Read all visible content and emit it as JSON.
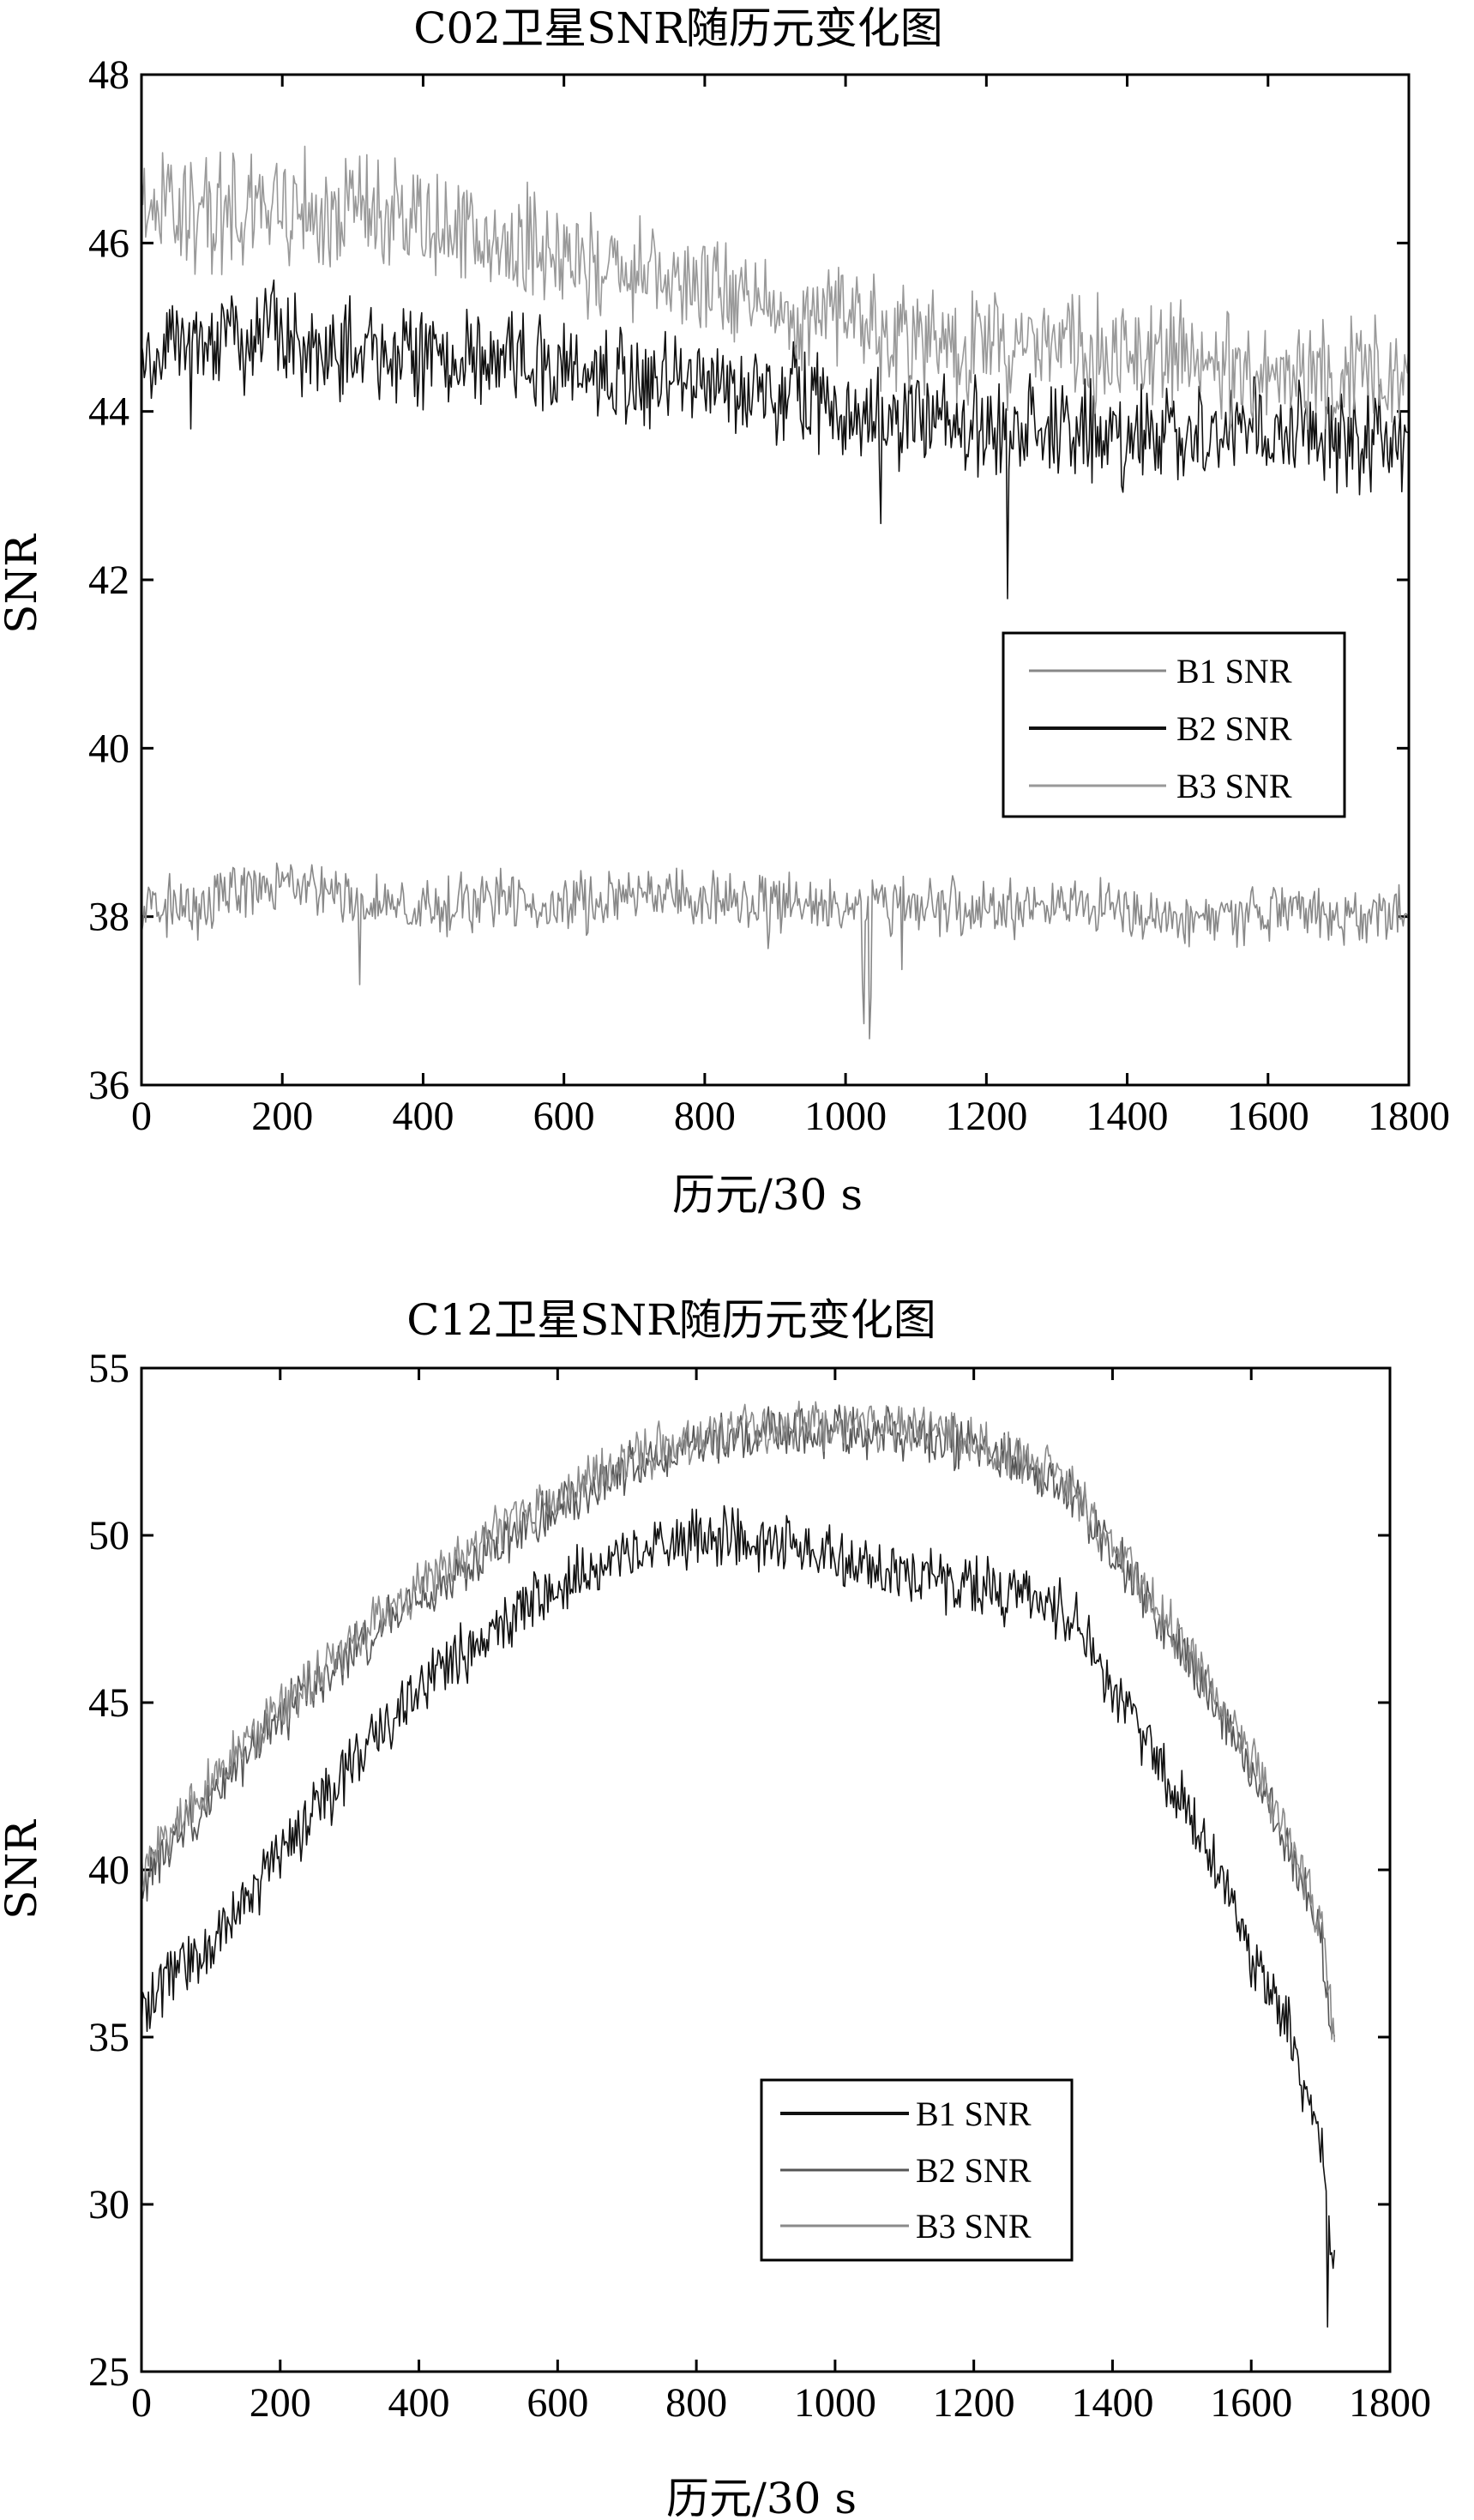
{
  "chart_data": [
    {
      "type": "line",
      "title": "C02卫星SNR随历元变化图",
      "xlabel": "历元/30 s",
      "ylabel": "SNR",
      "xlim": [
        0,
        1800
      ],
      "ylim": [
        36,
        48
      ],
      "xticks": [
        0,
        200,
        400,
        600,
        800,
        1000,
        1200,
        1400,
        1600,
        1800
      ],
      "yticks": [
        36,
        38,
        40,
        42,
        44,
        46,
        48
      ],
      "grid": false,
      "legend_position": "center-right",
      "series": [
        {
          "name": "B1 SNR",
          "color": "#888888",
          "noise": 0.35,
          "dips": [
            [
              80,
              -0.5
            ],
            [
              100,
              -0.6
            ],
            [
              310,
              -0.8
            ],
            [
              470,
              -0.6
            ],
            [
              890,
              -0.4
            ],
            [
              1025,
              -1.2
            ],
            [
              1035,
              -1.3
            ],
            [
              1080,
              -0.9
            ],
            [
              1480,
              -0.4
            ]
          ],
          "points": [
            [
              0,
              38.1
            ],
            [
              100,
              38.2
            ],
            [
              200,
              38.4
            ],
            [
              300,
              38.2
            ],
            [
              400,
              38.1
            ],
            [
              500,
              38.2
            ],
            [
              600,
              38.1
            ],
            [
              700,
              38.3
            ],
            [
              800,
              38.2
            ],
            [
              900,
              38.2
            ],
            [
              1000,
              38.1
            ],
            [
              1100,
              38.1
            ],
            [
              1200,
              38.1
            ],
            [
              1300,
              38.1
            ],
            [
              1400,
              38.1
            ],
            [
              1500,
              37.9
            ],
            [
              1600,
              38.1
            ],
            [
              1700,
              38.0
            ],
            [
              1800,
              38.0
            ]
          ]
        },
        {
          "name": "B2 SNR",
          "color": "#111111",
          "noise": 0.6,
          "dips": [
            [
              70,
              -0.7
            ],
            [
              1050,
              -1.2
            ],
            [
              1230,
              -1.9
            ],
            [
              1480,
              -0.9
            ]
          ],
          "points": [
            [
              0,
              44.8
            ],
            [
              100,
              44.8
            ],
            [
              200,
              44.9
            ],
            [
              300,
              44.7
            ],
            [
              400,
              44.6
            ],
            [
              500,
              44.6
            ],
            [
              600,
              44.5
            ],
            [
              700,
              44.4
            ],
            [
              800,
              44.3
            ],
            [
              900,
              44.2
            ],
            [
              1000,
              44.0
            ],
            [
              1100,
              43.9
            ],
            [
              1200,
              43.8
            ],
            [
              1300,
              43.8
            ],
            [
              1400,
              43.7
            ],
            [
              1500,
              43.7
            ],
            [
              1600,
              43.8
            ],
            [
              1700,
              43.7
            ],
            [
              1800,
              43.7
            ]
          ]
        },
        {
          "name": "B3 SNR",
          "color": "#999999",
          "noise": 0.7,
          "dips": [],
          "points": [
            [
              0,
              46.4
            ],
            [
              100,
              46.3
            ],
            [
              200,
              46.4
            ],
            [
              300,
              46.3
            ],
            [
              400,
              46.2
            ],
            [
              500,
              46.0
            ],
            [
              600,
              45.8
            ],
            [
              700,
              45.7
            ],
            [
              800,
              45.5
            ],
            [
              900,
              45.3
            ],
            [
              1000,
              45.0
            ],
            [
              1100,
              44.9
            ],
            [
              1200,
              44.8
            ],
            [
              1300,
              44.7
            ],
            [
              1400,
              44.7
            ],
            [
              1500,
              44.6
            ],
            [
              1600,
              44.5
            ],
            [
              1700,
              44.4
            ],
            [
              1800,
              44.4
            ]
          ]
        }
      ]
    },
    {
      "type": "line",
      "title": "C12卫星SNR随历元变化图",
      "xlabel": "历元/30 s",
      "ylabel": "SNR",
      "xlim": [
        0,
        1800
      ],
      "ylim": [
        25,
        55
      ],
      "xticks": [
        0,
        200,
        400,
        600,
        800,
        1000,
        1200,
        1400,
        1600,
        1800
      ],
      "yticks": [
        25,
        30,
        35,
        40,
        45,
        50,
        55
      ],
      "grid": false,
      "legend_position": "lower-center",
      "series": [
        {
          "name": "B1 SNR",
          "color": "#111111",
          "noise": 0.9,
          "dips": [
            [
              1710,
              -3.0
            ]
          ],
          "points": [
            [
              0,
              35.5
            ],
            [
              50,
              37.0
            ],
            [
              100,
              37.5
            ],
            [
              150,
              39.0
            ],
            [
              200,
              40.5
            ],
            [
              300,
              43.0
            ],
            [
              400,
              45.5
            ],
            [
              500,
              47.0
            ],
            [
              600,
              48.5
            ],
            [
              700,
              49.5
            ],
            [
              800,
              50.0
            ],
            [
              900,
              49.8
            ],
            [
              1000,
              49.5
            ],
            [
              1100,
              48.8
            ],
            [
              1200,
              48.5
            ],
            [
              1300,
              48.0
            ],
            [
              1350,
              47.5
            ],
            [
              1400,
              45.0
            ],
            [
              1450,
              44.0
            ],
            [
              1500,
              42.0
            ],
            [
              1550,
              40.0
            ],
            [
              1600,
              37.5
            ],
            [
              1650,
              35.5
            ],
            [
              1700,
              32.0
            ],
            [
              1720,
              28.0
            ]
          ]
        },
        {
          "name": "B2 SNR",
          "color": "#555555",
          "noise": 0.8,
          "dips": [],
          "points": [
            [
              0,
              39.5
            ],
            [
              50,
              41.0
            ],
            [
              100,
              42.0
            ],
            [
              150,
              43.5
            ],
            [
              200,
              44.5
            ],
            [
              300,
              46.5
            ],
            [
              400,
              48.0
            ],
            [
              500,
              49.5
            ],
            [
              600,
              50.8
            ],
            [
              700,
              52.0
            ],
            [
              800,
              52.7
            ],
            [
              900,
              53.1
            ],
            [
              1000,
              53.2
            ],
            [
              1100,
              53.1
            ],
            [
              1200,
              52.7
            ],
            [
              1300,
              51.8
            ],
            [
              1350,
              51.0
            ],
            [
              1400,
              49.5
            ],
            [
              1450,
              48.0
            ],
            [
              1500,
              46.5
            ],
            [
              1550,
              45.0
            ],
            [
              1600,
              43.0
            ],
            [
              1650,
              41.0
            ],
            [
              1700,
              38.0
            ],
            [
              1720,
              35.0
            ]
          ]
        },
        {
          "name": "B3 SNR",
          "color": "#8a8a8a",
          "noise": 0.8,
          "dips": [],
          "points": [
            [
              0,
              40.0
            ],
            [
              50,
              41.5
            ],
            [
              100,
              42.5
            ],
            [
              150,
              43.8
            ],
            [
              200,
              44.8
            ],
            [
              300,
              46.8
            ],
            [
              400,
              48.5
            ],
            [
              500,
              50.0
            ],
            [
              600,
              51.2
            ],
            [
              700,
              52.2
            ],
            [
              800,
              52.9
            ],
            [
              900,
              53.2
            ],
            [
              1000,
              53.3
            ],
            [
              1100,
              53.2
            ],
            [
              1200,
              52.8
            ],
            [
              1300,
              52.0
            ],
            [
              1350,
              51.2
            ],
            [
              1400,
              49.8
            ],
            [
              1450,
              48.2
            ],
            [
              1500,
              46.8
            ],
            [
              1550,
              45.2
            ],
            [
              1600,
              43.3
            ],
            [
              1650,
              41.3
            ],
            [
              1700,
              38.2
            ],
            [
              1720,
              35.2
            ]
          ]
        }
      ]
    }
  ]
}
